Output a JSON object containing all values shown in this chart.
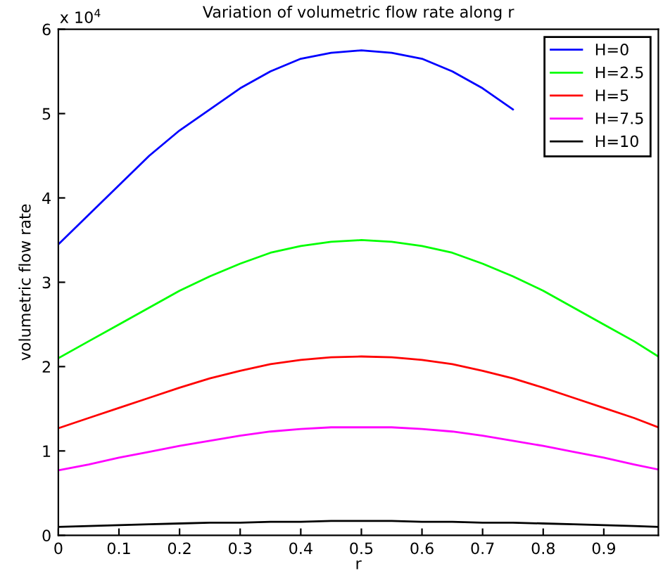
{
  "chart_data": {
    "type": "line",
    "title": "Variation of volumetric flow rate along r",
    "xlabel": "r",
    "ylabel": "volumetric flow rate",
    "x": [
      0,
      0.05,
      0.1,
      0.15,
      0.2,
      0.25,
      0.3,
      0.35,
      0.4,
      0.45,
      0.5,
      0.55,
      0.6,
      0.65,
      0.7,
      0.75,
      0.8,
      0.85,
      0.9,
      0.95,
      0.99
    ],
    "series": [
      {
        "name": "H=0",
        "color": "#0000ff",
        "values": [
          3.45,
          3.8,
          4.15,
          4.5,
          4.8,
          5.05,
          5.3,
          5.5,
          5.65,
          5.72,
          5.75,
          5.72,
          5.65,
          5.5,
          5.3,
          5.05,
          null,
          null,
          null,
          null,
          null
        ]
      },
      {
        "name": "H=2.5",
        "color": "#00ff00",
        "values": [
          2.1,
          2.3,
          2.5,
          2.7,
          2.9,
          3.07,
          3.22,
          3.35,
          3.43,
          3.48,
          3.5,
          3.48,
          3.43,
          3.35,
          3.22,
          3.07,
          2.9,
          2.7,
          2.5,
          2.3,
          2.12
        ]
      },
      {
        "name": "H=5",
        "color": "#ff0000",
        "values": [
          1.27,
          1.39,
          1.51,
          1.63,
          1.75,
          1.86,
          1.95,
          2.03,
          2.08,
          2.11,
          2.12,
          2.11,
          2.08,
          2.03,
          1.95,
          1.86,
          1.75,
          1.63,
          1.51,
          1.39,
          1.28
        ]
      },
      {
        "name": "H=7.5",
        "color": "#ff00ff",
        "values": [
          0.77,
          0.84,
          0.92,
          0.99,
          1.06,
          1.12,
          1.18,
          1.23,
          1.26,
          1.28,
          1.28,
          1.28,
          1.26,
          1.23,
          1.18,
          1.12,
          1.06,
          0.99,
          0.92,
          0.84,
          0.78
        ]
      },
      {
        "name": "H=10",
        "color": "#000000",
        "values": [
          0.1,
          0.11,
          0.12,
          0.13,
          0.14,
          0.15,
          0.15,
          0.16,
          0.16,
          0.17,
          0.17,
          0.17,
          0.16,
          0.16,
          0.15,
          0.15,
          0.14,
          0.13,
          0.12,
          0.11,
          0.1
        ]
      }
    ],
    "xlim": [
      0,
      0.99
    ],
    "ylim": [
      0,
      6
    ],
    "xticks": [
      0,
      0.1,
      0.2,
      0.3,
      0.4,
      0.5,
      0.6,
      0.7,
      0.8,
      0.9
    ],
    "yticks": [
      0,
      1,
      2,
      3,
      4,
      5,
      6
    ],
    "annotations": [
      "x 10$^{4}$"
    ],
    "legend": "top right",
    "grid": false,
    "marker": "none",
    "line_style": "solid"
  }
}
